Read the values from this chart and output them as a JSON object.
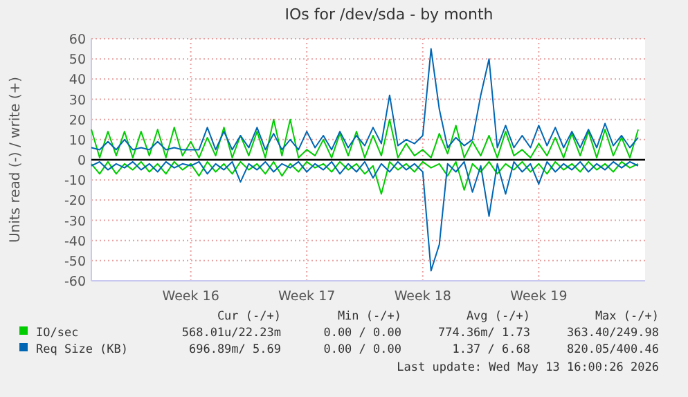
{
  "chart_data": {
    "type": "line",
    "title": "IOs for /dev/sda - by month",
    "ylabel": "Units read (-) / write (+)",
    "categories": [
      null,
      null,
      null,
      null,
      null,
      null,
      null,
      null,
      null,
      null,
      null,
      null,
      "Week 16",
      null,
      null,
      null,
      null,
      null,
      null,
      null,
      null,
      null,
      null,
      null,
      null,
      null,
      "Week 17",
      null,
      null,
      null,
      null,
      null,
      null,
      null,
      null,
      null,
      null,
      null,
      null,
      null,
      "Week 18",
      null,
      null,
      null,
      null,
      null,
      null,
      null,
      null,
      null,
      null,
      null,
      null,
      null,
      "Week 19",
      null,
      null,
      null,
      null,
      null,
      null,
      null,
      null,
      null,
      null,
      null,
      null
    ],
    "ylim": [
      -60,
      60
    ],
    "yticks": [
      -60,
      -50,
      -40,
      -30,
      -20,
      -10,
      0,
      10,
      20,
      30,
      40,
      50,
      60
    ],
    "grid": true,
    "legend": "bottom",
    "ref_lines": [
      {
        "axis": "y",
        "value": 0,
        "color": "#000000"
      }
    ],
    "series": [
      {
        "name": "IO/sec",
        "color": "#00cc00",
        "values": [
          15,
          1,
          14,
          2,
          14,
          1,
          14,
          2,
          15,
          1,
          16,
          2,
          9,
          1,
          11,
          2,
          16,
          1,
          12,
          2,
          14,
          1,
          20,
          2,
          20,
          1,
          5,
          2,
          10,
          1,
          13,
          2,
          14,
          1,
          12,
          2,
          20,
          1,
          8,
          2,
          5,
          1,
          13,
          3,
          17,
          1,
          9,
          2,
          12,
          1,
          14,
          2,
          5,
          1,
          8,
          2,
          11,
          1,
          13,
          2,
          14,
          1,
          15,
          2,
          11,
          1,
          15
        ]
      },
      {
        "color": "#00cc00",
        "values": [
          -2,
          -7,
          -1,
          -7,
          -2,
          -5,
          -1,
          -6,
          -2,
          -7,
          -1,
          -5,
          -2,
          -8,
          -1,
          -6,
          -2,
          -7,
          -1,
          -5,
          -2,
          -7,
          -1,
          -8,
          -2,
          -6,
          -1,
          -4,
          -2,
          -6,
          -1,
          -5,
          -2,
          -7,
          -3,
          -17,
          -1,
          -5,
          -2,
          -6,
          -1,
          -4,
          -2,
          -8,
          -1,
          -15,
          -2,
          -6,
          -1,
          -7,
          -2,
          -5,
          -1,
          -6,
          -2,
          -7,
          -1,
          -5,
          -2,
          -6,
          -1,
          -5,
          -2,
          -6,
          -1,
          -4,
          -2
        ]
      },
      {
        "name": "Req Size (KB)",
        "color": "#0066b3",
        "values": [
          6,
          5,
          9,
          5,
          10,
          5,
          6,
          5,
          9,
          5,
          6,
          5,
          5,
          5,
          16,
          5,
          14,
          5,
          12,
          6,
          16,
          5,
          13,
          5,
          10,
          5,
          14,
          6,
          12,
          5,
          14,
          6,
          12,
          7,
          16,
          8,
          32,
          7,
          10,
          8,
          12,
          55,
          25,
          6,
          11,
          7,
          10,
          32,
          50,
          6,
          17,
          6,
          12,
          6,
          17,
          7,
          16,
          6,
          14,
          6,
          15,
          6,
          18,
          7,
          12,
          6,
          11
        ]
      },
      {
        "color": "#0066b3",
        "values": [
          -3,
          -1,
          -5,
          -2,
          -4,
          -1,
          -5,
          -2,
          -6,
          -1,
          -4,
          -2,
          -3,
          -1,
          -7,
          -2,
          -5,
          -1,
          -11,
          -2,
          -5,
          -1,
          -6,
          -2,
          -4,
          -1,
          -6,
          -2,
          -5,
          -1,
          -7,
          -2,
          -6,
          -1,
          -9,
          -2,
          -6,
          -1,
          -5,
          -2,
          -6,
          -55,
          -42,
          -2,
          -6,
          -1,
          -16,
          -3,
          -28,
          -2,
          -17,
          -1,
          -6,
          -2,
          -12,
          -1,
          -6,
          -2,
          -5,
          -1,
          -6,
          -2,
          -5,
          -1,
          -4,
          -1,
          -3
        ]
      }
    ],
    "annotations": [
      "Cur (-/+)",
      "Min (-/+)",
      "Avg (-/+)",
      "Max (-/+)",
      "568.01u/22.23m",
      "0.00 / 0.00",
      "774.36m/ 1.73",
      "363.40/249.98",
      "696.89m/ 5.69",
      "0.00 / 0.00",
      "1.37 / 6.68",
      "820.05/400.46",
      "Last update: Wed May 13 16:00:26 2026"
    ]
  }
}
